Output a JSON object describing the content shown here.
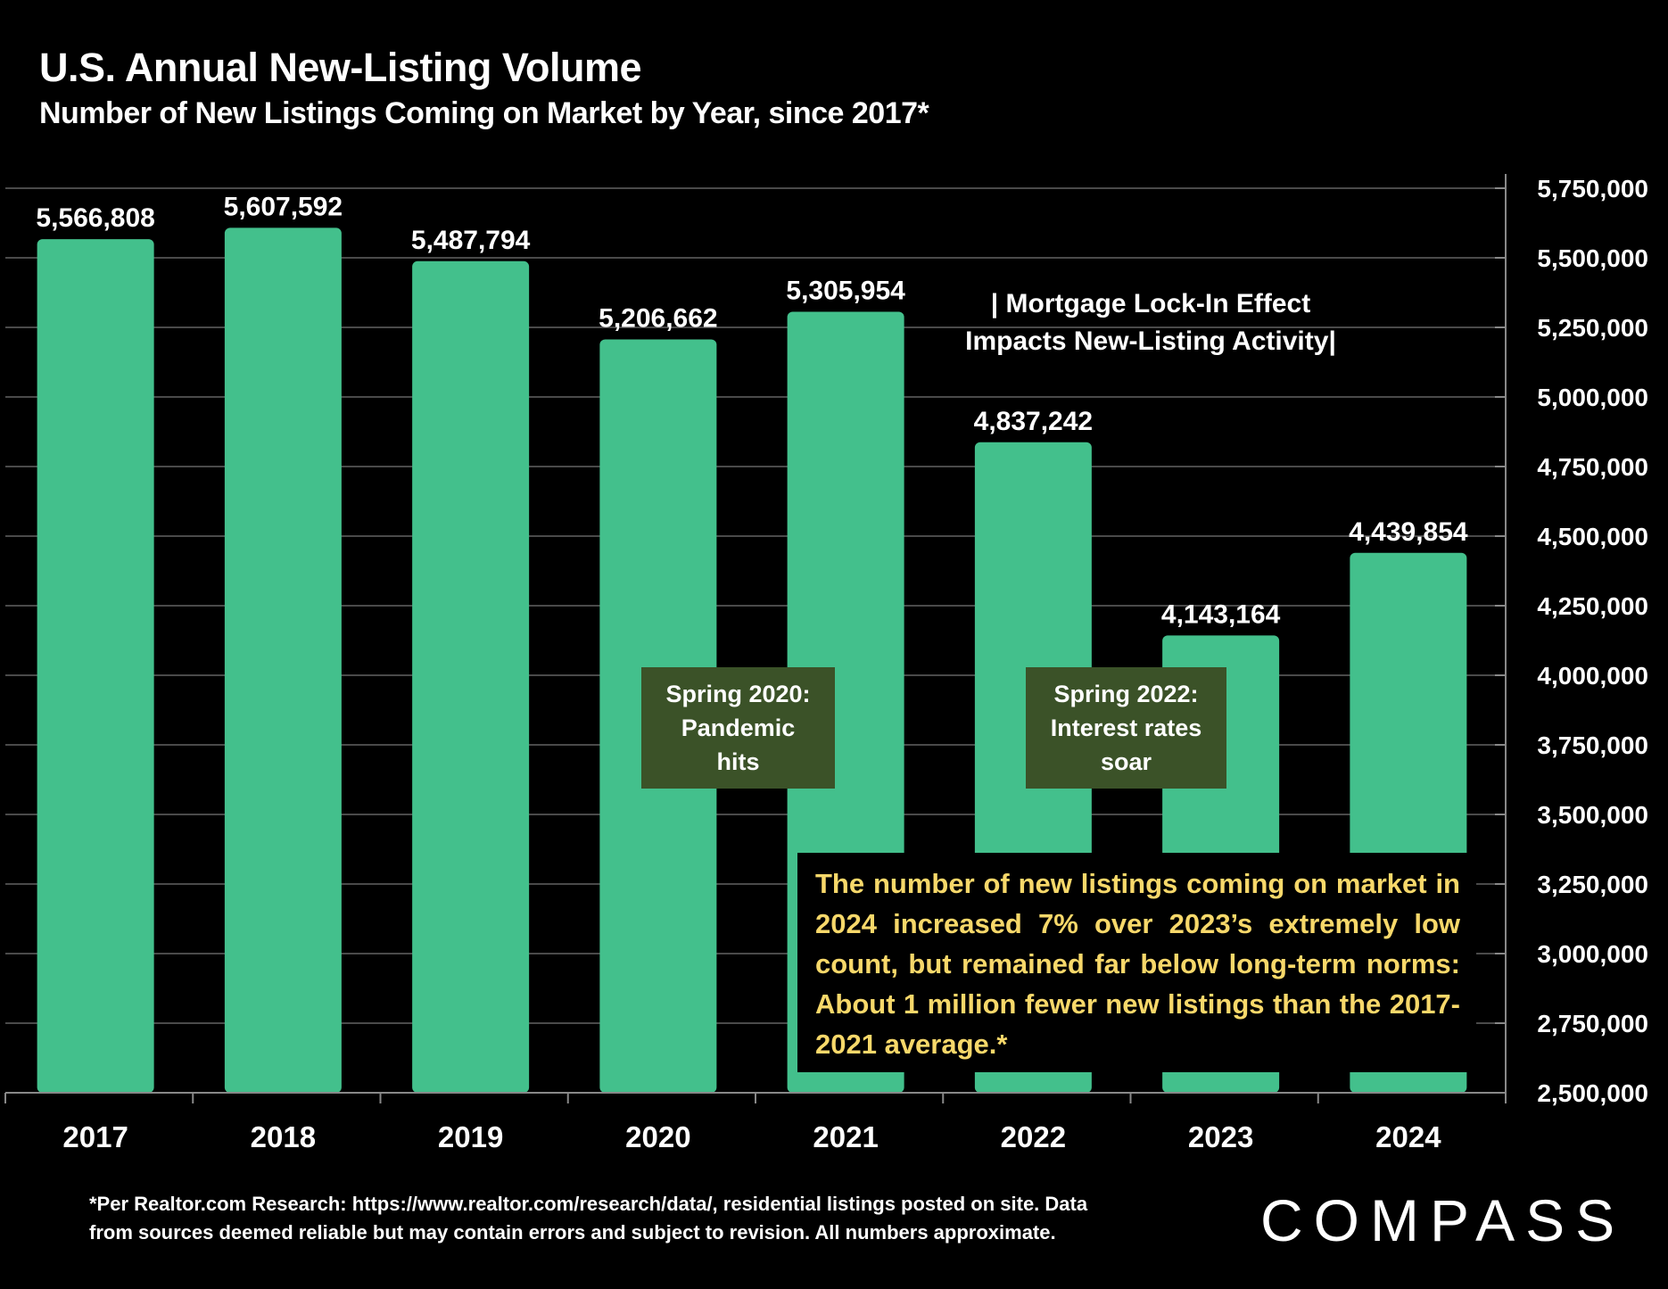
{
  "chart_data": {
    "type": "bar",
    "title": "U.S. Annual New-Listing Volume",
    "subtitle": "Number of New Listings Coming on Market by Year, since 2017*",
    "categories": [
      "2017",
      "2018",
      "2019",
      "2020",
      "2021",
      "2022",
      "2023",
      "2024"
    ],
    "values": [
      5566808,
      5607592,
      5487794,
      5206662,
      5305954,
      4837242,
      4143164,
      4439854
    ],
    "data_labels": [
      "5,566,808",
      "5,607,592",
      "5,487,794",
      "5,206,662",
      "5,305,954",
      "4,837,242",
      "4,143,164",
      "4,439,854"
    ],
    "ylim": [
      2500000,
      5750000
    ],
    "y_axis_position": "right",
    "y_ticks": [
      "2,500,000",
      "2,750,000",
      "3,000,000",
      "3,250,000",
      "3,500,000",
      "3,750,000",
      "4,000,000",
      "4,250,000",
      "4,500,000",
      "4,750,000",
      "5,000,000",
      "5,250,000",
      "5,500,000",
      "5,750,000"
    ],
    "grid": true,
    "bar_color": "#43c08c",
    "background": "#000000",
    "annotations": {
      "mortgage": [
        "| Mortgage Lock-In Effect",
        "Impacts New-Listing Activity|"
      ],
      "spring2020": "Spring 2020: Pandemic hits",
      "spring2022": "Spring 2022: Interest rates soar",
      "callout": "The number of new listings coming on market in 2024 increased 7% over 2023’s extremely low count, but remained far below long-term norms:   About 1 million fewer new listings than the 2017-2021 average.*",
      "callout_color": "#f7d86a",
      "box_color": "#3b5228"
    }
  },
  "footer": {
    "line1": "*Per Realtor.com Research:  https://www.realtor.com/research/data/, residential listings posted on site. Data",
    "line2": "from sources deemed reliable but may contain errors and subject to revision. All numbers approximate."
  },
  "logo": "COMPASS"
}
